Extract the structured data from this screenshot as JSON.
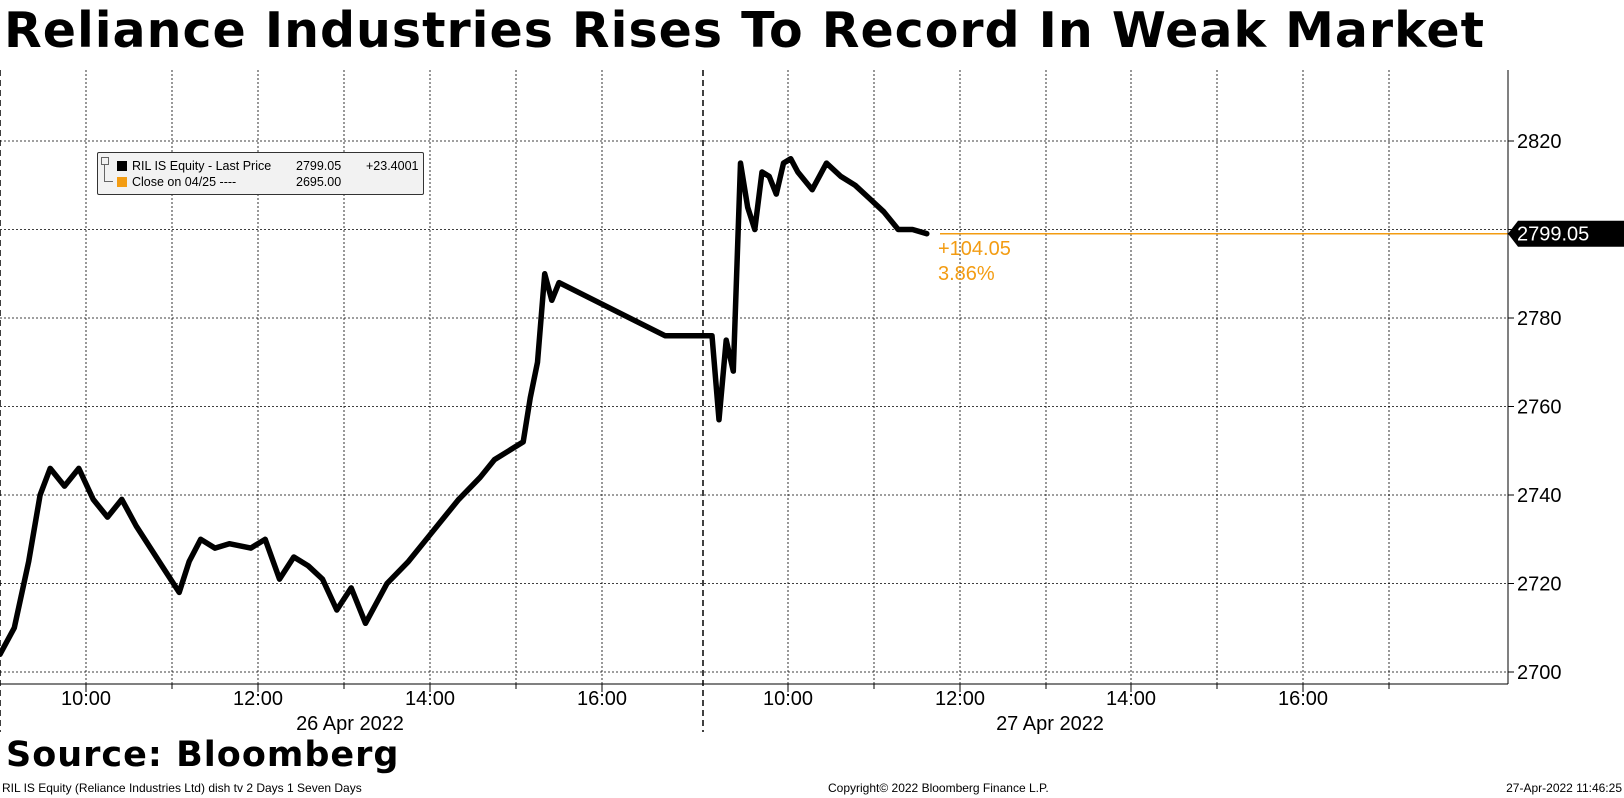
{
  "title": "Reliance Industries Rises To Record In Weak Market",
  "source": "Source: Bloomberg",
  "footer": {
    "left": "RIL IS Equity (Reliance Industries Ltd) dish tv 2 Days 1 Seven Days",
    "center": "Copyright© 2022 Bloomberg Finance L.P.",
    "right": "27-Apr-2022 11:46:25"
  },
  "legend": {
    "items": [
      {
        "name": "RIL IS Equity - Last Price",
        "value": "2799.05",
        "change": "+23.4001",
        "color": "#000000"
      },
      {
        "name": "Close on 04/25 ----",
        "value": "2695.00",
        "change": "",
        "color": "#f39c12"
      }
    ]
  },
  "annotation": {
    "change": "+104.05",
    "pct": "3.86%",
    "color": "#f39c12"
  },
  "last_price_label": "2799.05",
  "chart_data": {
    "type": "line",
    "ylim": [
      2698,
      2826
    ],
    "y_ticks": [
      2700,
      2720,
      2740,
      2760,
      2780,
      2800,
      2820
    ],
    "x_labels": [
      "10:00",
      "12:00",
      "14:00",
      "16:00",
      "10:00",
      "12:00",
      "14:00",
      "16:00"
    ],
    "date_labels": [
      "26 Apr 2022",
      "27 Apr 2022"
    ],
    "grid": true,
    "legend_position": "top-left",
    "reference_line": 2799.05,
    "series": [
      {
        "name": "RIL IS Equity - Last Price",
        "color": "#000000",
        "x": [
          "26-Apr 09:00",
          "26-Apr 09:10",
          "26-Apr 09:20",
          "26-Apr 09:28",
          "26-Apr 09:35",
          "26-Apr 09:45",
          "26-Apr 09:55",
          "26-Apr 10:05",
          "26-Apr 10:15",
          "26-Apr 10:25",
          "26-Apr 10:35",
          "26-Apr 10:45",
          "26-Apr 10:55",
          "26-Apr 11:05",
          "26-Apr 11:12",
          "26-Apr 11:20",
          "26-Apr 11:30",
          "26-Apr 11:40",
          "26-Apr 11:55",
          "26-Apr 12:05",
          "26-Apr 12:15",
          "26-Apr 12:25",
          "26-Apr 12:35",
          "26-Apr 12:45",
          "26-Apr 12:55",
          "26-Apr 13:05",
          "26-Apr 13:15",
          "26-Apr 13:30",
          "26-Apr 13:45",
          "26-Apr 14:00",
          "26-Apr 14:10",
          "26-Apr 14:20",
          "26-Apr 14:35",
          "26-Apr 14:45",
          "26-Apr 14:55",
          "26-Apr 15:05",
          "26-Apr 15:10",
          "26-Apr 15:15",
          "26-Apr 15:20",
          "26-Apr 15:25",
          "26-Apr 15:30",
          "26-Apr 16:40",
          "26-Apr 17:10",
          "27-Apr 09:20",
          "27-Apr 09:25",
          "27-Apr 09:30",
          "27-Apr 09:35",
          "27-Apr 09:40",
          "27-Apr 09:45",
          "27-Apr 09:50",
          "27-Apr 09:55",
          "27-Apr 10:00",
          "27-Apr 10:05",
          "27-Apr 10:10",
          "27-Apr 10:15",
          "27-Apr 10:25",
          "27-Apr 10:35",
          "27-Apr 10:45",
          "27-Apr 10:55",
          "27-Apr 11:05",
          "27-Apr 11:15",
          "27-Apr 11:25",
          "27-Apr 11:35",
          "27-Apr 11:45"
        ],
        "values": [
          2704,
          2710,
          2725,
          2740,
          2746,
          2742,
          2746,
          2739,
          2735,
          2739,
          2733,
          2728,
          2723,
          2718,
          2725,
          2730,
          2728,
          2729,
          2728,
          2730,
          2721,
          2726,
          2724,
          2721,
          2714,
          2719,
          2711,
          2720,
          2725,
          2731,
          2735,
          2739,
          2744,
          2748,
          2750,
          2752,
          2762,
          2770,
          2790,
          2784,
          2788,
          2776,
          2776,
          2757,
          2775,
          2768,
          2815,
          2805,
          2800,
          2813,
          2812,
          2808,
          2815,
          2816,
          2813,
          2809,
          2815,
          2812,
          2810,
          2807,
          2804,
          2800,
          2800,
          2799.05
        ]
      },
      {
        "name": "Close on 04/25 ----",
        "color": "#f39c12",
        "values": [
          2695.0
        ]
      }
    ]
  }
}
